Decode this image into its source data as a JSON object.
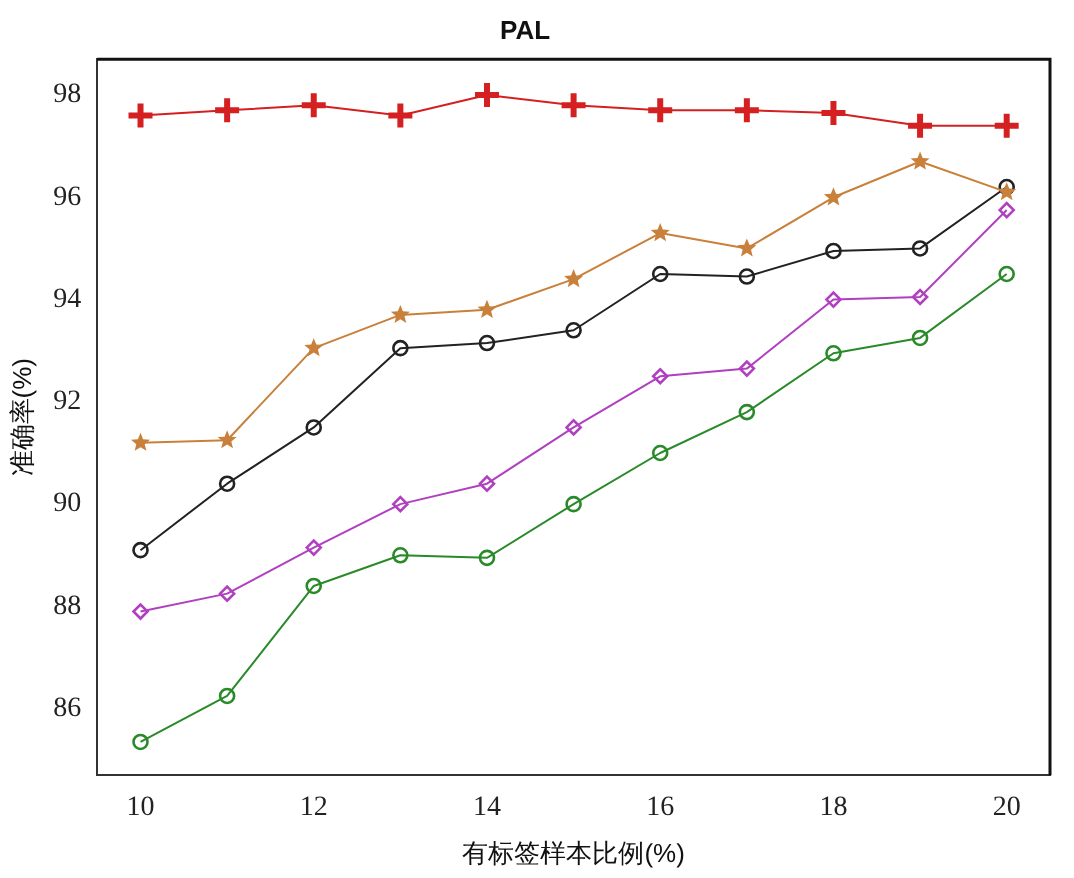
{
  "chart_data": {
    "type": "line",
    "title": "PAL",
    "xlabel": "有标签样本比例(%)",
    "ylabel": "准确率(%)",
    "x": [
      10,
      11,
      12,
      13,
      14,
      15,
      16,
      17,
      18,
      19,
      20
    ],
    "xlim": [
      9.5,
      20.5
    ],
    "xticks": [
      10,
      12,
      14,
      16,
      18,
      20
    ],
    "ylim": [
      84.7,
      98.7
    ],
    "yticks": [
      86,
      88,
      90,
      92,
      94,
      96,
      98
    ],
    "grid": false,
    "legend": false,
    "series": [
      {
        "color": "#d42020",
        "marker": "cross",
        "values": [
          97.6,
          97.7,
          97.8,
          97.6,
          98.0,
          97.8,
          97.7,
          97.7,
          97.65,
          97.4,
          97.4
        ]
      },
      {
        "color": "#c8803a",
        "marker": "star",
        "values": [
          91.2,
          91.25,
          93.05,
          93.7,
          93.8,
          94.4,
          95.3,
          95.0,
          96.0,
          96.7,
          96.1
        ]
      },
      {
        "color": "#222222",
        "marker": "circle",
        "values": [
          89.1,
          90.4,
          91.5,
          93.05,
          93.15,
          93.4,
          94.5,
          94.45,
          94.95,
          95.0,
          96.2
        ]
      },
      {
        "color": "#b040c0",
        "marker": "diamond",
        "values": [
          87.9,
          88.25,
          89.15,
          90.0,
          90.4,
          91.5,
          92.5,
          92.65,
          94.0,
          94.05,
          95.75
        ]
      },
      {
        "color": "#2a8a2a",
        "marker": "circle",
        "values": [
          85.35,
          86.25,
          88.4,
          89.0,
          88.95,
          90.0,
          91.0,
          91.8,
          92.95,
          93.25,
          94.5
        ]
      }
    ]
  }
}
